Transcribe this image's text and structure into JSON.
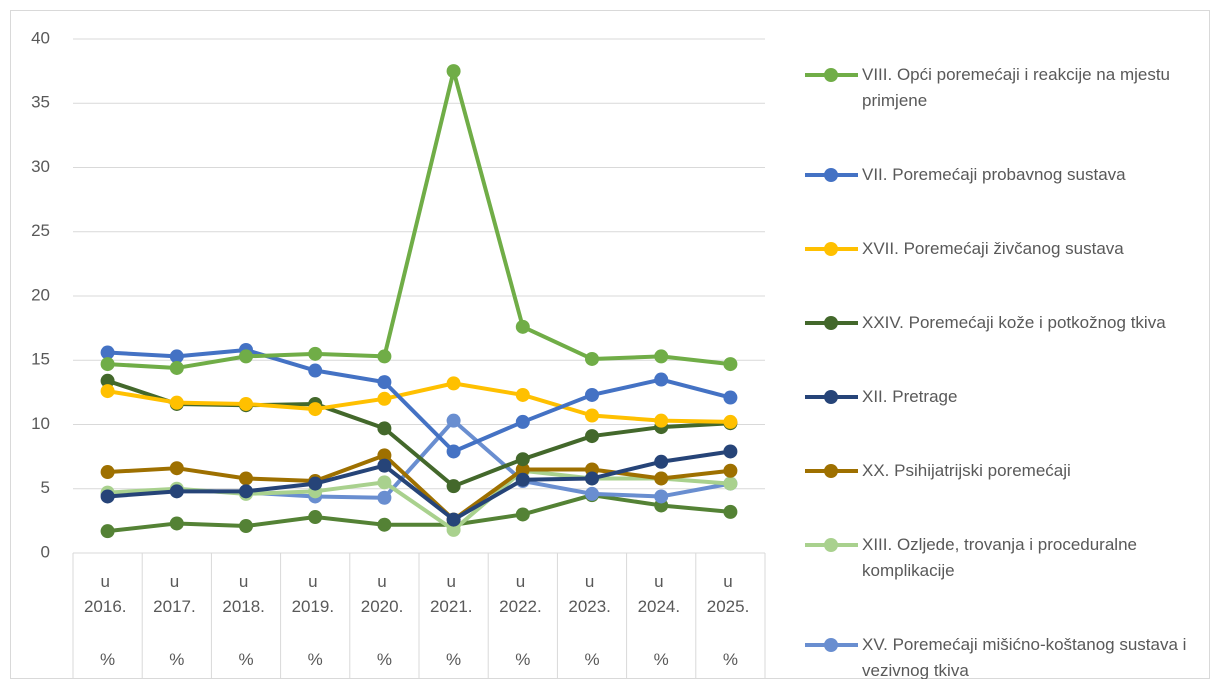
{
  "chart_data": {
    "type": "line",
    "categories": [
      "u 2016. %",
      "u 2017. %",
      "u 2018. %",
      "u 2019. %",
      "u 2020. %",
      "u 2021. %",
      "u 2022. %",
      "u 2023. %",
      "u 2024. %",
      "u 2025. %"
    ],
    "ylim": [
      0,
      40
    ],
    "yticks": [
      0,
      5,
      10,
      15,
      20,
      25,
      30,
      35,
      40
    ],
    "grid": true,
    "legend": "right",
    "series": [
      {
        "name": "VIII. Opći poremećaji i reakcije na mjestu primjene",
        "color": "#70ad47",
        "values": [
          14.7,
          14.4,
          15.3,
          15.5,
          15.3,
          37.5,
          17.6,
          15.1,
          15.3,
          14.7
        ]
      },
      {
        "name": "VII. Poremećaji probavnog sustava",
        "color": "#4472c4",
        "values": [
          15.6,
          15.3,
          15.8,
          14.2,
          13.3,
          7.9,
          10.2,
          12.3,
          13.5,
          12.1
        ]
      },
      {
        "name": "XVII. Poremećaji živčanog sustava",
        "color": "#ffc000",
        "values": [
          12.6,
          11.7,
          11.6,
          11.2,
          12.0,
          13.2,
          12.3,
          10.7,
          10.3,
          10.2
        ]
      },
      {
        "name": "XXIV. Poremećaji kože i potkožnog tkiva",
        "color": "#43682b",
        "values": [
          13.4,
          11.6,
          11.5,
          11.6,
          9.7,
          5.2,
          7.3,
          9.1,
          9.8,
          10.1
        ]
      },
      {
        "name": "XII. Pretrage",
        "color": "#264478",
        "values": [
          4.4,
          4.8,
          4.8,
          5.4,
          6.8,
          2.6,
          5.7,
          5.8,
          7.1,
          7.9
        ]
      },
      {
        "name": "XX. Psihijatrijski poremećaji",
        "color": "#9e7000",
        "values": [
          6.3,
          6.6,
          5.8,
          5.6,
          7.6,
          2.6,
          6.5,
          6.5,
          5.8,
          6.4
        ]
      },
      {
        "name": "XIII. Ozljede, trovanja i proceduralne komplikacije",
        "color": "#a9d18e",
        "values": [
          4.7,
          5.0,
          4.6,
          4.8,
          5.5,
          1.8,
          6.4,
          5.8,
          5.8,
          5.4
        ]
      },
      {
        "name": "XV. Poremećaji mišićno-koštanog sustava i vezivnog tkiva",
        "color": "#698ed0",
        "values": [
          4.6,
          4.9,
          4.7,
          4.4,
          4.3,
          10.3,
          5.6,
          4.6,
          4.4,
          5.4
        ]
      },
      {
        "color": "#548235",
        "values": [
          1.7,
          2.3,
          2.1,
          2.8,
          2.2,
          2.2,
          3.0,
          4.5,
          3.7,
          3.2
        ]
      }
    ]
  }
}
